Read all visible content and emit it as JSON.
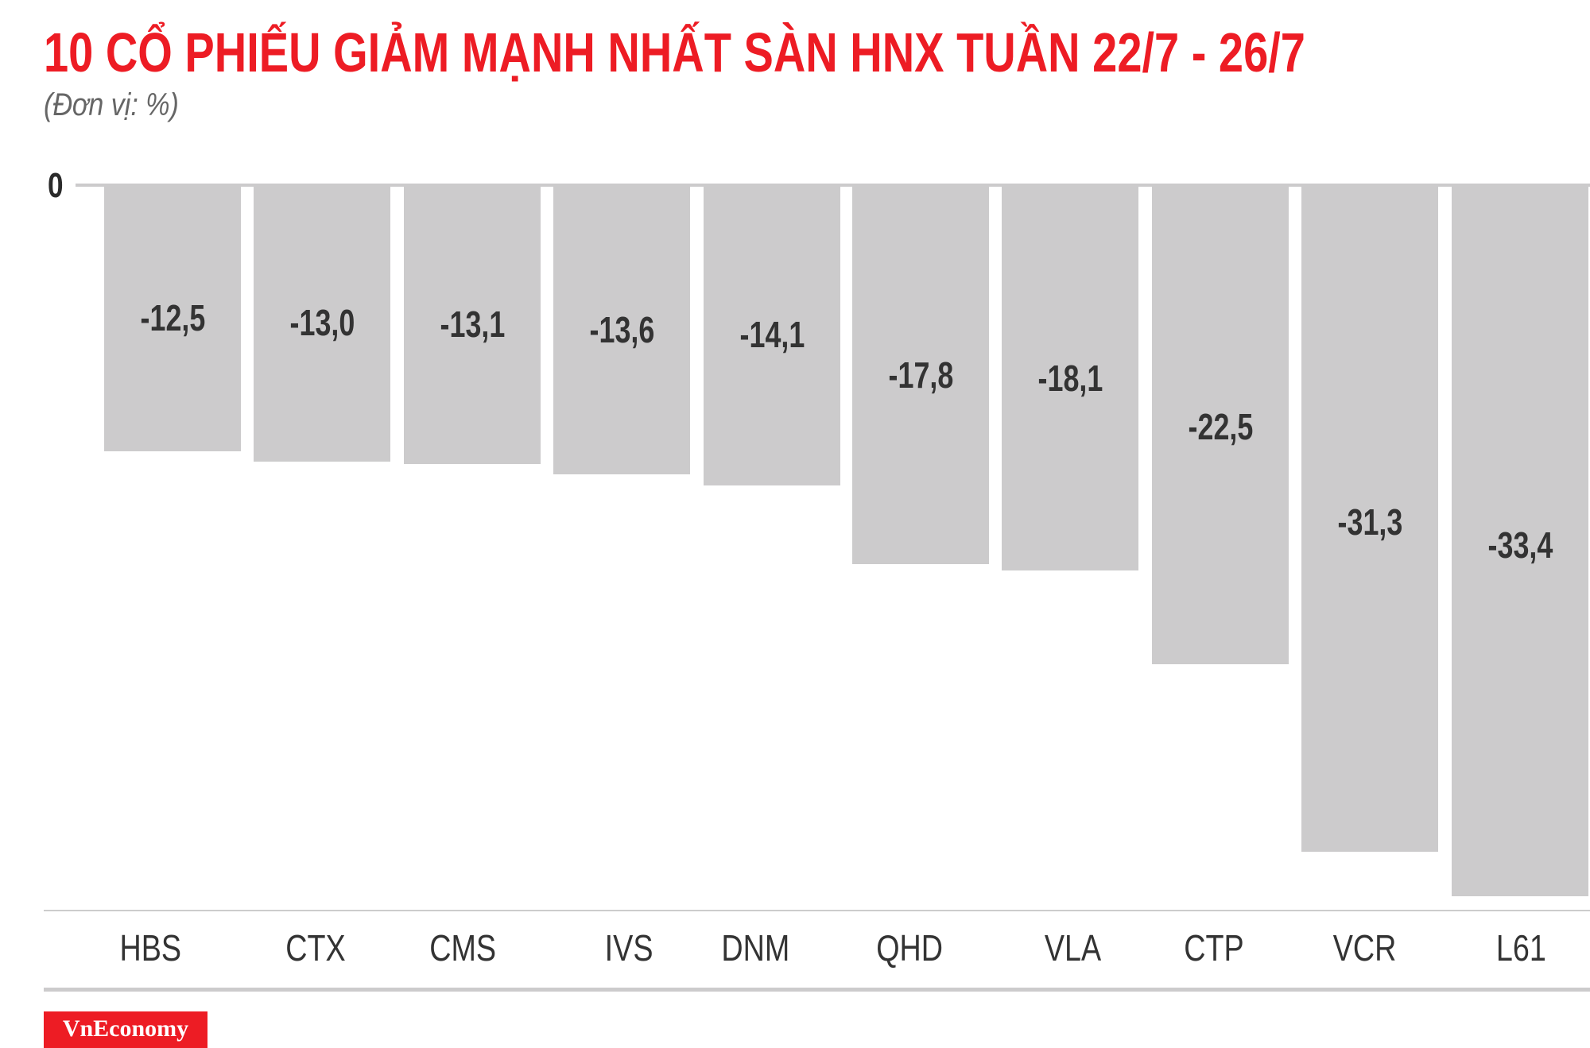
{
  "header": {
    "title": "10 CỔ PHIẾU GIẢM MẠNH NHẤT SÀN HNX TUẦN 22/7 - 26/7",
    "subtitle": "(Đơn vị: %)"
  },
  "axis": {
    "zero_label": "0"
  },
  "colors": {
    "title": "#ed1c24",
    "bar": "#cccbcc",
    "label": "#333333",
    "logo_bg": "#ed1c24"
  },
  "logo": {
    "text": "VnEconomy"
  },
  "chart_data": {
    "type": "bar",
    "title": "10 CỔ PHIẾU GIẢM MẠNH NHẤT SÀN HNX TUẦN 22/7 - 26/7",
    "subtitle": "(Đơn vị: %)",
    "xlabel": "",
    "ylabel": "%",
    "categories": [
      "HBS",
      "CTX",
      "CMS",
      "IVS",
      "DNM",
      "QHD",
      "VLA",
      "CTP",
      "VCR",
      "L61"
    ],
    "values": [
      -12.5,
      -13.0,
      -13.1,
      -13.6,
      -14.1,
      -17.8,
      -18.1,
      -22.5,
      -31.3,
      -33.4
    ],
    "value_labels": [
      "-12,5",
      "-13,0",
      "-13,1",
      "-13,6",
      "-14,1",
      "-17,8",
      "-18,1",
      "-22,5",
      "-31,3",
      "-33,4"
    ],
    "y_ticks": [
      "0"
    ],
    "ylim": [
      -34,
      0
    ],
    "grid": false,
    "legend": "none",
    "bar_color": "#cccbcc"
  }
}
